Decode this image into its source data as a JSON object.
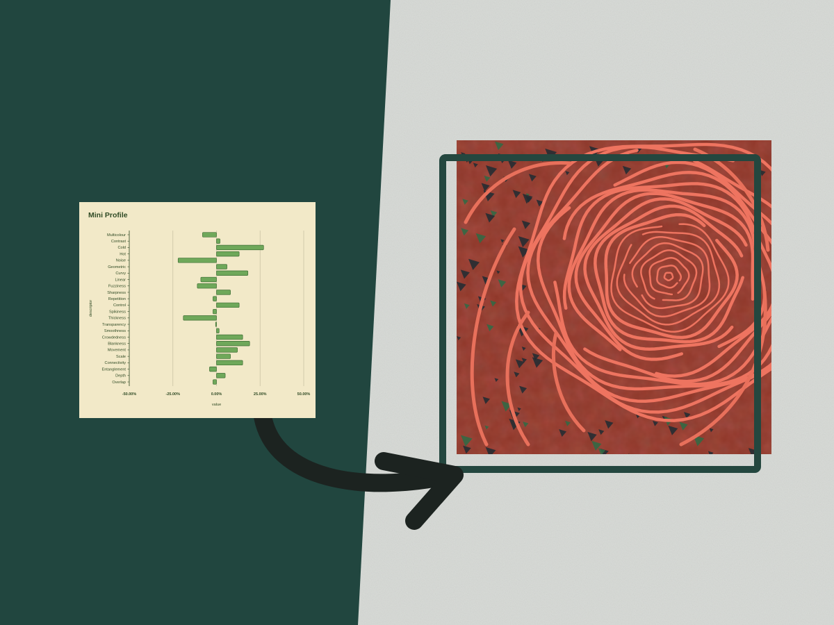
{
  "colors": {
    "left_panel": "#21463f",
    "wall": "#d6d9d5",
    "card_bg": "#f2e9c8",
    "bar_fill": "#6fa85a",
    "bar_stroke": "#3f6e35",
    "frame": "#24473f",
    "arrow": "#1c2320",
    "artwork_base": "#8e3628",
    "artwork_lines": "#ee7460"
  },
  "artwork": {
    "icon": "spiral-artwork-image"
  },
  "chart_data": {
    "type": "bar",
    "orientation": "horizontal",
    "title": "Mini Profile",
    "xlabel": "value",
    "ylabel": "descriptor",
    "xlim": [
      -0.5,
      0.5
    ],
    "x_ticks": [
      -0.5,
      -0.25,
      0,
      0.25,
      0.5
    ],
    "x_tick_labels": [
      "-50.00%",
      "-25.00%",
      "0.00%",
      "25.00%",
      "50.00%"
    ],
    "grid": true,
    "categories": [
      "Multicolour",
      "Contrast",
      "Cold",
      "Hot",
      "Noise",
      "Geometric",
      "Curvy",
      "Linear",
      "Fuzziness",
      "Sharpness",
      "Repetition",
      "Control",
      "Spikiness",
      "Thickness",
      "Transparency",
      "Smoothness",
      "Crowdedness",
      "Blankness",
      "Movement",
      "Scale",
      "Connectivity",
      "Entanglement",
      "Depth",
      "Overlap"
    ],
    "values": [
      -0.08,
      0.02,
      0.27,
      0.13,
      -0.22,
      0.06,
      0.18,
      -0.09,
      -0.11,
      0.08,
      -0.02,
      0.13,
      -0.02,
      -0.19,
      -0.005,
      0.015,
      0.15,
      0.19,
      0.12,
      0.08,
      0.15,
      -0.04,
      0.05,
      -0.02
    ]
  }
}
